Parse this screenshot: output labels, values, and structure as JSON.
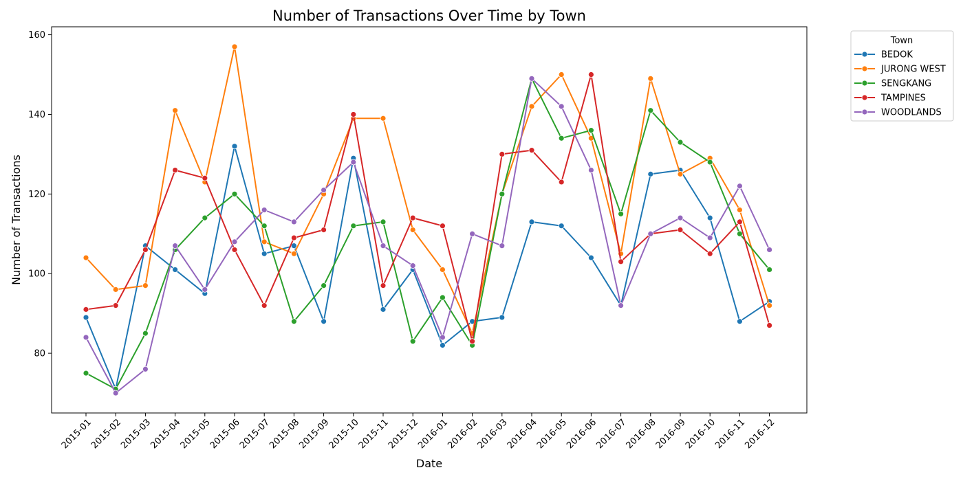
{
  "chart_data": {
    "type": "line",
    "title": "Number of Transactions Over Time by Town",
    "xlabel": "Date",
    "ylabel": "Number of Transactions",
    "ylim": [
      65,
      162
    ],
    "yticks": [
      80,
      100,
      120,
      140,
      160
    ],
    "grid": false,
    "legend_title": "Town",
    "legend_position": "outside-top-right",
    "x": [
      "2015-01",
      "2015-02",
      "2015-03",
      "2015-04",
      "2015-05",
      "2015-06",
      "2015-07",
      "2015-08",
      "2015-09",
      "2015-10",
      "2015-11",
      "2015-12",
      "2016-01",
      "2016-02",
      "2016-03",
      "2016-04",
      "2016-05",
      "2016-06",
      "2016-07",
      "2016-08",
      "2016-09",
      "2016-10",
      "2016-11",
      "2016-12"
    ],
    "series": [
      {
        "name": "BEDOK",
        "color": "#1f77b4",
        "values": [
          89,
          71,
          107,
          101,
          95,
          132,
          105,
          107,
          88,
          129,
          91,
          101,
          82,
          88,
          89,
          113,
          112,
          104,
          92,
          125,
          126,
          114,
          88,
          93
        ]
      },
      {
        "name": "JURONG WEST",
        "color": "#ff7f0e",
        "values": [
          104,
          96,
          97,
          141,
          123,
          157,
          108,
          105,
          120,
          139,
          139,
          111,
          101,
          85,
          120,
          142,
          150,
          134,
          105,
          149,
          125,
          129,
          116,
          92
        ]
      },
      {
        "name": "SENGKANG",
        "color": "#2ca02c",
        "values": [
          75,
          71,
          85,
          106,
          114,
          120,
          112,
          88,
          97,
          112,
          113,
          83,
          94,
          82,
          120,
          149,
          134,
          136,
          115,
          141,
          133,
          128,
          110,
          101
        ]
      },
      {
        "name": "TAMPINES",
        "color": "#d62728",
        "values": [
          91,
          92,
          106,
          126,
          124,
          106,
          92,
          109,
          111,
          140,
          97,
          114,
          112,
          83,
          130,
          131,
          123,
          150,
          103,
          110,
          111,
          105,
          113,
          87
        ]
      },
      {
        "name": "WOODLANDS",
        "color": "#9467bd",
        "values": [
          84,
          70,
          76,
          107,
          96,
          108,
          116,
          113,
          121,
          128,
          107,
          102,
          84,
          110,
          107,
          149,
          142,
          126,
          92,
          110,
          114,
          109,
          122,
          106
        ]
      }
    ]
  }
}
